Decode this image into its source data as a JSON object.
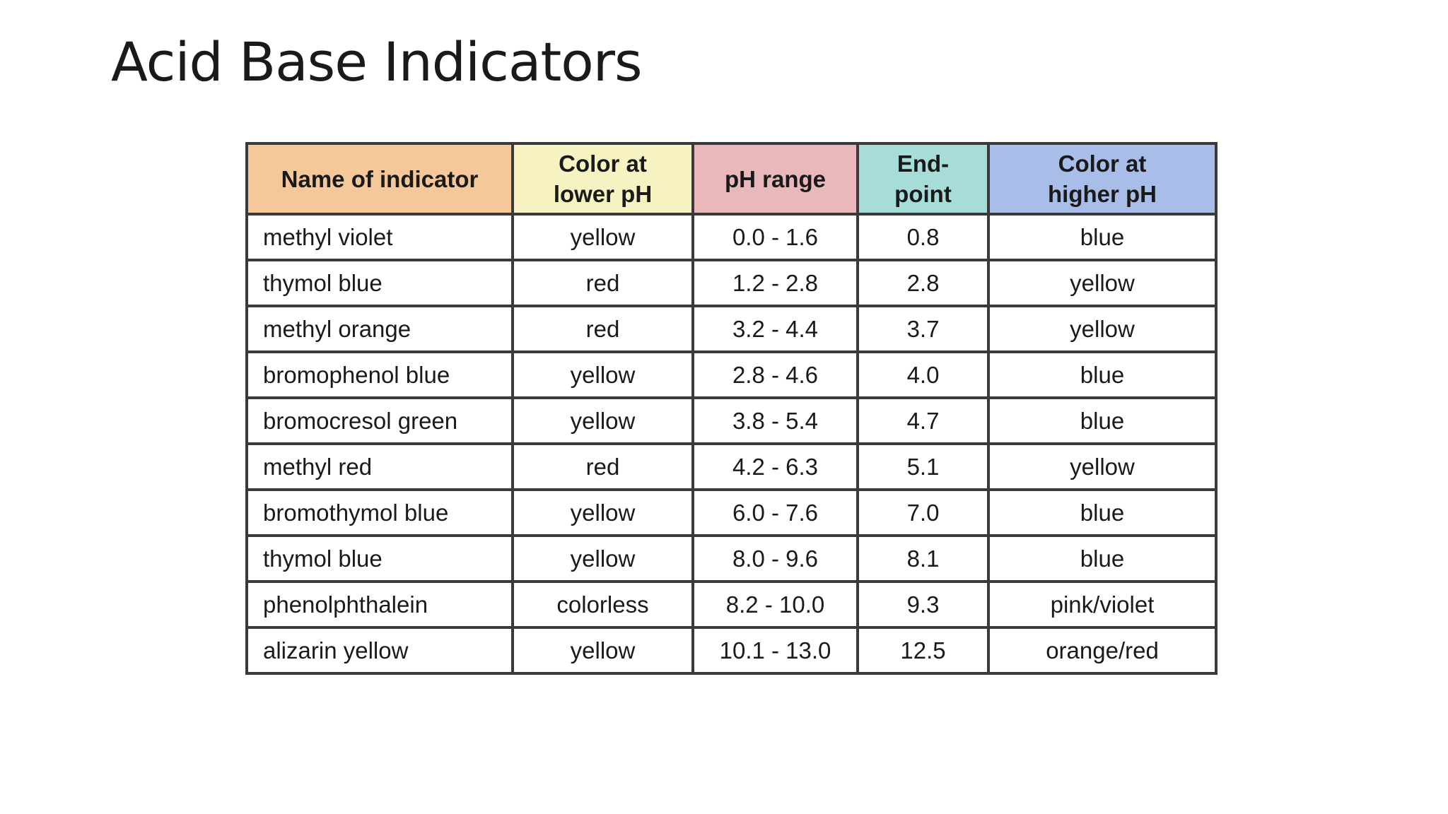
{
  "slide": {
    "title": "Acid Base Indicators"
  },
  "colors": {
    "header_name": "#f5c899",
    "header_lower": "#f7f2c1",
    "header_range": "#e8b8bb",
    "header_endpoint": "#a6ddd8",
    "header_higher": "#a9bde9",
    "border": "#3a3a3a"
  },
  "table": {
    "headers": [
      {
        "line1": "Name of indicator",
        "line2": ""
      },
      {
        "line1": "Color at",
        "line2": "lower pH"
      },
      {
        "line1": "pH range",
        "line2": ""
      },
      {
        "line1": "End-",
        "line2": "point"
      },
      {
        "line1": "Color at",
        "line2": "higher pH"
      }
    ],
    "rows": [
      {
        "name": "methyl violet",
        "lower": "yellow",
        "range": "0.0 - 1.6",
        "endpoint": "0.8",
        "higher": "blue"
      },
      {
        "name": "thymol blue",
        "lower": "red",
        "range": "1.2 - 2.8",
        "endpoint": "2.8",
        "higher": "yellow"
      },
      {
        "name": "methyl orange",
        "lower": "red",
        "range": "3.2 - 4.4",
        "endpoint": "3.7",
        "higher": "yellow"
      },
      {
        "name": "bromophenol blue",
        "lower": "yellow",
        "range": "2.8 - 4.6",
        "endpoint": "4.0",
        "higher": "blue"
      },
      {
        "name": "bromocresol green",
        "lower": "yellow",
        "range": "3.8 - 5.4",
        "endpoint": "4.7",
        "higher": "blue"
      },
      {
        "name": "methyl red",
        "lower": "red",
        "range": "4.2 - 6.3",
        "endpoint": "5.1",
        "higher": "yellow"
      },
      {
        "name": "bromothymol blue",
        "lower": "yellow",
        "range": "6.0 - 7.6",
        "endpoint": "7.0",
        "higher": "blue"
      },
      {
        "name": "thymol blue",
        "lower": "yellow",
        "range": "8.0 - 9.6",
        "endpoint": "8.1",
        "higher": "blue"
      },
      {
        "name": "phenolphthalein",
        "lower": "colorless",
        "range": "8.2 - 10.0",
        "endpoint": "9.3",
        "higher": "pink/violet"
      },
      {
        "name": "alizarin yellow",
        "lower": "yellow",
        "range": "10.1 - 13.0",
        "endpoint": "12.5",
        "higher": "orange/red"
      }
    ]
  }
}
